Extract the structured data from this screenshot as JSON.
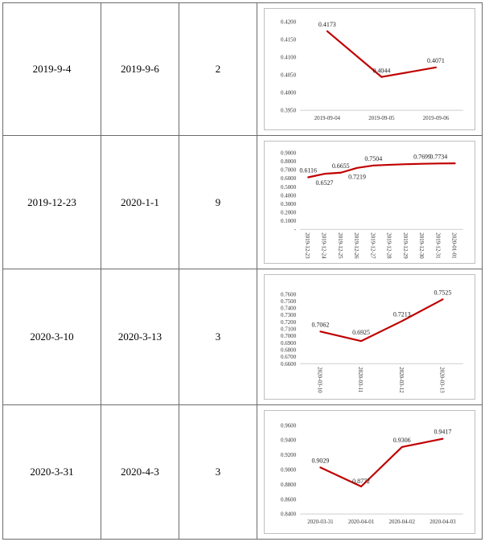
{
  "rows": [
    {
      "start": "2019-9-4",
      "end": "2019-9-6",
      "count": "2"
    },
    {
      "start": "2019-12-23",
      "end": "2020-1-1",
      "count": "9"
    },
    {
      "start": "2020-3-10",
      "end": "2020-3-13",
      "count": "3"
    },
    {
      "start": "2020-3-31",
      "end": "2020-4-3",
      "count": "3"
    }
  ],
  "chart_data": [
    {
      "type": "line",
      "x": [
        "2019-09-04",
        "2019-09-05",
        "2019-09-06"
      ],
      "values": [
        0.4173,
        0.4044,
        0.4071
      ],
      "labels": [
        "0.4173",
        "0.4044",
        "0.4071"
      ],
      "yticks": [
        "0.4200",
        "0.4150",
        "0.4100",
        "0.4050",
        "0.4000",
        "0.3950"
      ],
      "ylim": [
        0.395,
        0.42
      ],
      "xlabel_rotation": "horizontal",
      "line_color": "#c00000"
    },
    {
      "type": "line",
      "x": [
        "2019-12-23",
        "2019-12-24",
        "2019-12-25",
        "2019-12-26",
        "2019-12-27",
        "2019-12-28",
        "2019-12-29",
        "2019-12-30",
        "2019-12-31",
        "2020-01-01"
      ],
      "values": [
        0.6116,
        0.6527,
        0.6655,
        0.7219,
        0.7504,
        0.758,
        0.765,
        0.7699,
        0.7734,
        0.775
      ],
      "labels": [
        "0.6116",
        "0.6527",
        "0.6655",
        "0.7219",
        "0.7504",
        "",
        "",
        "0.7699",
        "0.7734",
        ""
      ],
      "yticks": [
        "0.9000",
        "0.8000",
        "0.7000",
        "0.6000",
        "0.5000",
        "0.4000",
        "0.3000",
        "0.2000",
        "0.1000",
        "-"
      ],
      "ylim": [
        0,
        0.9
      ],
      "xlabel_rotation": "vertical",
      "line_color": "#c00000"
    },
    {
      "type": "line",
      "x": [
        "2020-03-10",
        "2020-03-11",
        "2020-03-12",
        "2020-03-13"
      ],
      "values": [
        0.7062,
        0.6925,
        0.7213,
        0.7525
      ],
      "labels": [
        "0.7062",
        "0.6925",
        "0.7213",
        "0.7525"
      ],
      "yticks": [
        "0.7600",
        "0.7500",
        "0.7400",
        "0.7300",
        "0.7200",
        "0.7100",
        "0.7000",
        "0.6900",
        "0.6800",
        "0.6700",
        "0.6600"
      ],
      "ylim": [
        0.66,
        0.76
      ],
      "xlabel_rotation": "vertical",
      "line_color": "#c00000"
    },
    {
      "type": "line",
      "x": [
        "2020-03-31",
        "2020-04-01",
        "2020-04-02",
        "2020-04-03"
      ],
      "values": [
        0.9029,
        0.8772,
        0.9306,
        0.9417
      ],
      "labels": [
        "0.9029",
        "0.8772",
        "0.9306",
        "0.9417"
      ],
      "yticks": [
        "0.9600",
        "0.9400",
        "0.9200",
        "0.9000",
        "0.8800",
        "0.8600",
        "0.8400"
      ],
      "ylim": [
        0.84,
        0.96
      ],
      "xlabel_rotation": "horizontal",
      "line_color": "#c00000"
    }
  ]
}
